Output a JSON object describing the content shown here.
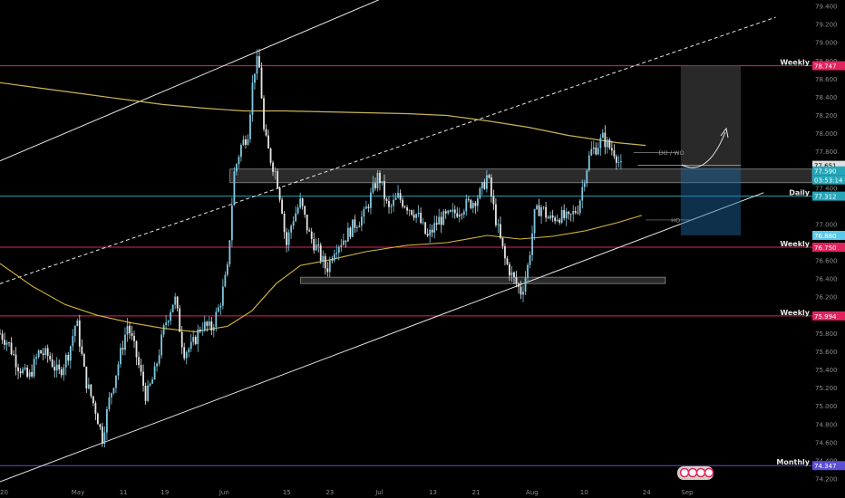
{
  "chart_data": {
    "type": "line",
    "title": "",
    "xlabel": "",
    "ylabel": "",
    "ylim": [
      74.17,
      79.47
    ],
    "y_ticks": [
      {
        "value": 79.4,
        "label": "79.400"
      },
      {
        "value": 79.2,
        "label": "79.200"
      },
      {
        "value": 79.0,
        "label": "79.000"
      },
      {
        "value": 78.8,
        "label": "78.800"
      },
      {
        "value": 78.6,
        "label": "78.600"
      },
      {
        "value": 78.4,
        "label": "78.400"
      },
      {
        "value": 78.2,
        "label": "78.200"
      },
      {
        "value": 78.0,
        "label": "78.000"
      },
      {
        "value": 77.8,
        "label": "77.800"
      },
      {
        "value": 77.4,
        "label": "77.400"
      },
      {
        "value": 77.0,
        "label": "77.000"
      },
      {
        "value": 76.6,
        "label": "76.600"
      },
      {
        "value": 76.4,
        "label": "76.400"
      },
      {
        "value": 76.2,
        "label": "76.200"
      },
      {
        "value": 75.8,
        "label": "75.800"
      },
      {
        "value": 75.6,
        "label": "75.600"
      },
      {
        "value": 75.4,
        "label": "75.400"
      },
      {
        "value": 75.2,
        "label": "75.200"
      },
      {
        "value": 75.0,
        "label": "75.000"
      },
      {
        "value": 74.8,
        "label": "74.800"
      },
      {
        "value": 74.6,
        "label": "74.600"
      },
      {
        "value": 74.4,
        "label": "74.400"
      },
      {
        "value": 74.2,
        "label": "74.200"
      }
    ],
    "x_ticks": [
      {
        "label": "20",
        "pos": 0.005
      },
      {
        "label": "May",
        "pos": 0.096
      },
      {
        "label": "11",
        "pos": 0.152
      },
      {
        "label": "19",
        "pos": 0.203
      },
      {
        "label": "Jun",
        "pos": 0.276
      },
      {
        "label": "15",
        "pos": 0.353
      },
      {
        "label": "23",
        "pos": 0.406
      },
      {
        "label": "Jul",
        "pos": 0.467
      },
      {
        "label": "13",
        "pos": 0.533
      },
      {
        "label": "21",
        "pos": 0.586
      },
      {
        "label": "Aug",
        "pos": 0.655
      },
      {
        "label": "10",
        "pos": 0.719
      },
      {
        "label": "24",
        "pos": 0.796
      },
      {
        "label": "Sep",
        "pos": 0.846
      }
    ],
    "close_series": [
      [
        0.0,
        75.8
      ],
      [
        0.01,
        75.7
      ],
      [
        0.022,
        75.45
      ],
      [
        0.035,
        75.3
      ],
      [
        0.048,
        75.6
      ],
      [
        0.06,
        75.55
      ],
      [
        0.072,
        75.35
      ],
      [
        0.085,
        75.6
      ],
      [
        0.094,
        75.95
      ],
      [
        0.105,
        75.3
      ],
      [
        0.118,
        74.95
      ],
      [
        0.126,
        74.65
      ],
      [
        0.134,
        75.05
      ],
      [
        0.145,
        75.45
      ],
      [
        0.157,
        75.9
      ],
      [
        0.168,
        75.55
      ],
      [
        0.18,
        75.1
      ],
      [
        0.19,
        75.35
      ],
      [
        0.203,
        75.9
      ],
      [
        0.215,
        76.2
      ],
      [
        0.226,
        75.6
      ],
      [
        0.236,
        75.65
      ],
      [
        0.248,
        75.9
      ],
      [
        0.26,
        75.85
      ],
      [
        0.27,
        76.1
      ],
      [
        0.28,
        76.5
      ],
      [
        0.288,
        77.55
      ],
      [
        0.296,
        77.85
      ],
      [
        0.305,
        78.0
      ],
      [
        0.311,
        78.55
      ],
      [
        0.315,
        78.8
      ],
      [
        0.32,
        78.7
      ],
      [
        0.325,
        78.0
      ],
      [
        0.332,
        77.75
      ],
      [
        0.34,
        77.55
      ],
      [
        0.347,
        77.2
      ],
      [
        0.352,
        76.75
      ],
      [
        0.36,
        77.05
      ],
      [
        0.37,
        77.25
      ],
      [
        0.38,
        76.9
      ],
      [
        0.392,
        76.7
      ],
      [
        0.402,
        76.5
      ],
      [
        0.412,
        76.75
      ],
      [
        0.424,
        76.85
      ],
      [
        0.436,
        77.0
      ],
      [
        0.448,
        77.1
      ],
      [
        0.458,
        77.35
      ],
      [
        0.466,
        77.55
      ],
      [
        0.478,
        77.15
      ],
      [
        0.49,
        77.3
      ],
      [
        0.502,
        77.2
      ],
      [
        0.514,
        77.1
      ],
      [
        0.526,
        76.85
      ],
      [
        0.54,
        77.05
      ],
      [
        0.556,
        77.1
      ],
      [
        0.57,
        77.2
      ],
      [
        0.582,
        77.25
      ],
      [
        0.592,
        77.35
      ],
      [
        0.6,
        77.55
      ],
      [
        0.606,
        77.25
      ],
      [
        0.614,
        76.9
      ],
      [
        0.622,
        76.6
      ],
      [
        0.632,
        76.4
      ],
      [
        0.642,
        76.25
      ],
      [
        0.65,
        76.55
      ],
      [
        0.658,
        77.1
      ],
      [
        0.666,
        77.2
      ],
      [
        0.676,
        77.05
      ],
      [
        0.688,
        77.1
      ],
      [
        0.7,
        77.05
      ],
      [
        0.712,
        77.2
      ],
      [
        0.72,
        77.55
      ],
      [
        0.727,
        77.8
      ],
      [
        0.734,
        77.85
      ],
      [
        0.742,
        77.95
      ],
      [
        0.75,
        77.85
      ],
      [
        0.757,
        77.8
      ],
      [
        0.762,
        77.68
      ],
      [
        0.766,
        77.59
      ]
    ],
    "ma_long": [
      [
        0.0,
        78.56
      ],
      [
        0.05,
        78.5
      ],
      [
        0.1,
        78.44
      ],
      [
        0.15,
        78.38
      ],
      [
        0.2,
        78.32
      ],
      [
        0.25,
        78.28
      ],
      [
        0.3,
        78.25
      ],
      [
        0.35,
        78.25
      ],
      [
        0.4,
        78.24
      ],
      [
        0.45,
        78.23
      ],
      [
        0.5,
        78.22
      ],
      [
        0.55,
        78.2
      ],
      [
        0.6,
        78.14
      ],
      [
        0.65,
        78.07
      ],
      [
        0.7,
        77.98
      ],
      [
        0.76,
        77.9
      ],
      [
        0.795,
        77.87
      ]
    ],
    "ma_short": [
      [
        0.0,
        76.57
      ],
      [
        0.04,
        76.32
      ],
      [
        0.08,
        76.12
      ],
      [
        0.12,
        76.0
      ],
      [
        0.16,
        75.92
      ],
      [
        0.2,
        75.86
      ],
      [
        0.24,
        75.82
      ],
      [
        0.28,
        75.88
      ],
      [
        0.31,
        76.05
      ],
      [
        0.34,
        76.35
      ],
      [
        0.37,
        76.55
      ],
      [
        0.4,
        76.6
      ],
      [
        0.45,
        76.7
      ],
      [
        0.5,
        76.77
      ],
      [
        0.55,
        76.8
      ],
      [
        0.6,
        76.88
      ],
      [
        0.64,
        76.84
      ],
      [
        0.68,
        76.87
      ],
      [
        0.72,
        76.93
      ],
      [
        0.76,
        77.02
      ],
      [
        0.79,
        77.1
      ]
    ],
    "horizontal_levels": [
      {
        "label": "Weekly",
        "value": 78.747,
        "price": "78.747",
        "color": "#e0245e"
      },
      {
        "label": "Weekly",
        "value": 76.75,
        "price": "76.750",
        "color": "#e0245e"
      },
      {
        "label": "Weekly",
        "value": 75.994,
        "price": "75.994",
        "color": "#e0245e"
      },
      {
        "label": "Daily",
        "value": 77.312,
        "price": "77.312",
        "color": "#26a6b8"
      },
      {
        "label": "Monthly",
        "value": 74.347,
        "price": "74.347",
        "color": "#5b4fd6"
      }
    ],
    "badges": [
      {
        "value": 77.651,
        "price": "77.651",
        "color": "#e0e0e0"
      },
      {
        "value": 77.59,
        "price": "77.590",
        "color": "#26a6b8"
      },
      {
        "value": 76.88,
        "price": "76.880",
        "color": "#5cc9ea"
      }
    ],
    "countdown": "03:53:14",
    "zones": [
      {
        "x0": 0.283,
        "x1": 1.0,
        "y_top": 77.61,
        "y_bottom": 77.46,
        "color": "#3a3a3a"
      },
      {
        "x0": 0.37,
        "x1": 0.819,
        "y_top": 76.42,
        "y_bottom": 76.35,
        "color": "#3a3a3a"
      }
    ],
    "trade_box": {
      "x0": 0.838,
      "x1": 0.912,
      "entry": 77.62,
      "target": 78.747,
      "stop": 76.88
    },
    "annotations": [
      {
        "text": "DO / WO",
        "value": 77.79,
        "x": 0.811
      },
      {
        "text": "HO",
        "value": 77.05,
        "x": 0.826
      }
    ],
    "channel": {
      "upper": [
        [
          0.0,
          77.7
        ],
        [
          0.5,
          79.6
        ]
      ],
      "lower": [
        [
          0.0,
          74.17
        ],
        [
          0.94,
          77.35
        ]
      ],
      "mid_dashed": [
        [
          0.31,
          77.3
        ],
        [
          0.955,
          79.28
        ]
      ]
    }
  }
}
